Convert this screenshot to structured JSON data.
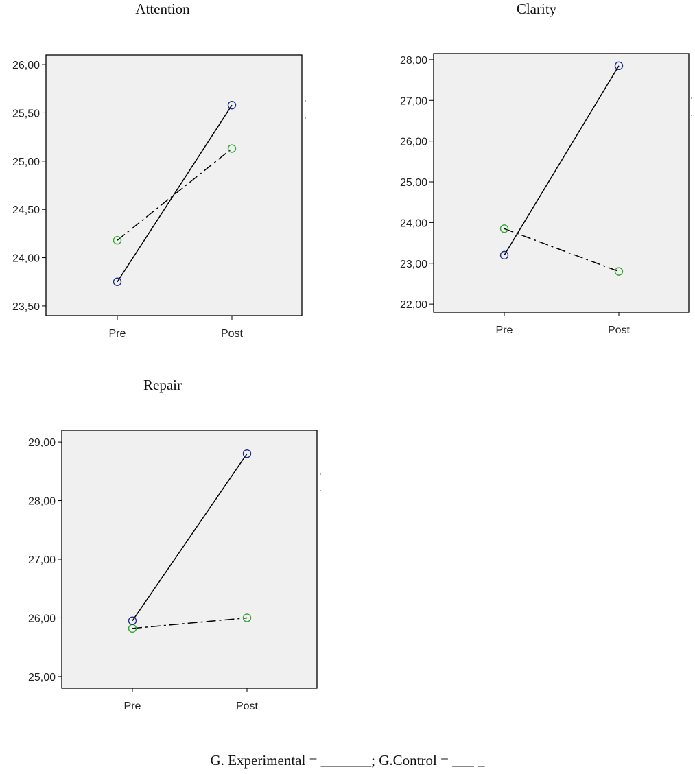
{
  "chart_data": [
    {
      "type": "line",
      "title": "Attention",
      "categories": [
        "Pre",
        "Post"
      ],
      "ylim": [
        23.4,
        26.1
      ],
      "yticks": [
        "23,50",
        "24,00",
        "24,50",
        "25,00",
        "25,50",
        "26,00"
      ],
      "grid": false,
      "series": [
        {
          "values": [
            23.75,
            25.58
          ],
          "color": "#1f2f8f",
          "line": "solid"
        },
        {
          "values": [
            24.18,
            25.13
          ],
          "color": "#2ea82e",
          "line": "dash-dot"
        }
      ]
    },
    {
      "type": "line",
      "title": "Clarity",
      "categories": [
        "Pre",
        "Post"
      ],
      "ylim": [
        21.8,
        28.15
      ],
      "yticks": [
        "22,00",
        "23,00",
        "24,00",
        "25,00",
        "26,00",
        "27,00",
        "28,00"
      ],
      "grid": false,
      "series": [
        {
          "values": [
            23.2,
            27.85
          ],
          "color": "#1f2f8f",
          "line": "solid"
        },
        {
          "values": [
            23.85,
            22.8
          ],
          "color": "#2ea82e",
          "line": "dash-dot"
        }
      ]
    },
    {
      "type": "line",
      "title": "Repair",
      "categories": [
        "Pre",
        "Post"
      ],
      "ylim": [
        24.8,
        29.2
      ],
      "yticks": [
        "25,00",
        "26,00",
        "27,00",
        "28,00",
        "29,00"
      ],
      "grid": false,
      "series": [
        {
          "values": [
            25.95,
            28.8
          ],
          "color": "#1f2f8f",
          "line": "solid"
        },
        {
          "values": [
            25.82,
            26.0
          ],
          "color": "#2ea82e",
          "line": "dash-dot"
        }
      ]
    }
  ],
  "caption": "G. Experimental = _______; G.Control =  ___ _"
}
